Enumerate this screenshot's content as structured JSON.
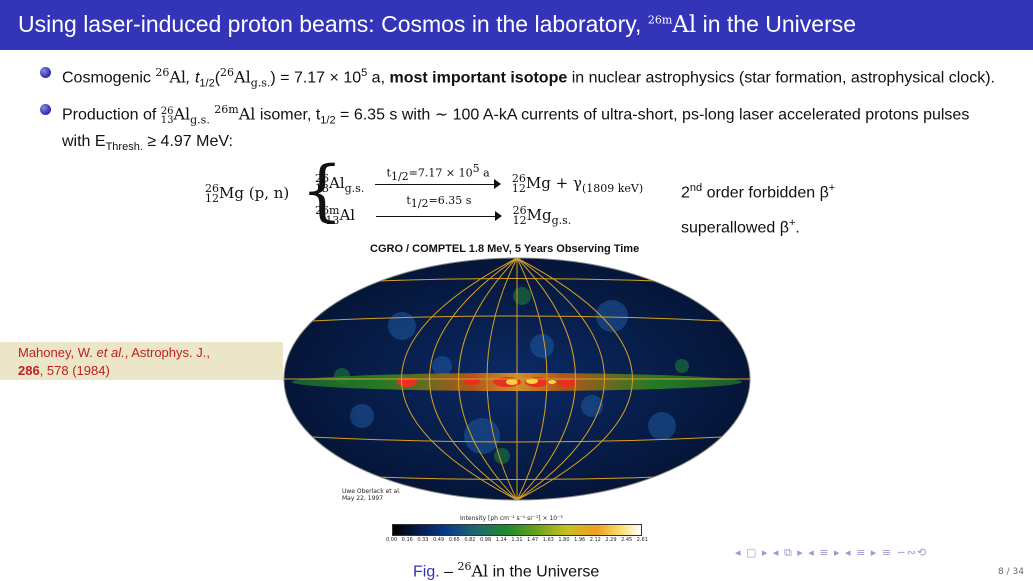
{
  "slide": {
    "title_main": "Using laser-induced proton beams: Cosmos in the laboratory, ",
    "title_iso_mass": "26m",
    "title_iso_el": "Al",
    "title_tail": " in the Universe"
  },
  "bullets": [
    {
      "a": "Cosmogenic ",
      "iso1_mass": "26",
      "iso1_el": "Al",
      "b": ", t",
      "half_sub": "1/2",
      "c": "(",
      "iso2_mass": "26",
      "iso2_el": "Al",
      "iso2_sub": "g.s.",
      "d": ") = 7.17 × 10",
      "exp": "5",
      "e": " a, ",
      "bold": "most important isotope",
      "f": " in nuclear astrophysics (star formation, astrophysical clock)."
    },
    {
      "a": "Production of ",
      "iso1_mass": "26",
      "iso1_z": "13",
      "iso1_el": "Al",
      "iso1_sub": "g.s.",
      "iso2_mass": "26m",
      "iso2_el": "Al",
      "b": " isomer, t",
      "half_sub": "1/2",
      "c": " = 6.35 s with ∼ 100 A-kA currents of ultra-short, ps-long laser accelerated protons pulses with E",
      "e_sub": "Thresh.",
      "d": " ≥ 4.97 MeV:"
    }
  ],
  "reaction": {
    "lhs_mass": "26",
    "lhs_z": "12",
    "lhs_el": "Mg",
    "lhs_rest": " (p, n)",
    "row1": {
      "p_mass": "26",
      "p_z": "13",
      "p_el": "Al",
      "p_sub": "g.s.",
      "arrow_label_t": "t",
      "arrow_label_sub": "1/2",
      "arrow_label_val": "=7.17 × 10",
      "arrow_label_exp": "5",
      "arrow_label_unit": " a",
      "d_mass": "26",
      "d_z": "12",
      "d_el": "Mg",
      "d_rest": " + γ",
      "d_gamma_sub": "(1809 keV)"
    },
    "row2": {
      "p_mass": "26m",
      "p_z": "13",
      "p_el": "Al",
      "arrow_label_t": "t",
      "arrow_label_sub": "1/2",
      "arrow_label_val": "=6.35 s",
      "d_mass": "26",
      "d_z": "12",
      "d_el": "Mg",
      "d_sub": "g.s."
    },
    "note1_sup": "nd",
    "note1_num": "2",
    "note1_text": " order forbidden β",
    "note1_plus": "+",
    "note2_text": "superallowed β",
    "note2_plus": "+",
    "note2_end": "."
  },
  "map": {
    "caption": "CGRO / COMPTEL 1.8 MeV, 5 Years Observing Time",
    "credit_1": "Uwe Oberlack et al.",
    "credit_2": "May 22, 1997",
    "colorbar_label": "Intensity [ph cm⁻² s⁻¹ sr⁻¹]  × 10⁻³",
    "colorbar_ticks": [
      "0.00",
      "0.16",
      "0.33",
      "0.49",
      "0.65",
      "0.82",
      "0.98",
      "1.14",
      "1.31",
      "1.47",
      "1.63",
      "1.80",
      "1.96",
      "2.12",
      "2.29",
      "2.45",
      "2.61"
    ]
  },
  "citation": {
    "line1_a": "Mahoney, W. ",
    "line1_italic": "et al.",
    "line1_b": ", Astrophys. J.,",
    "line2_bold": "286",
    "line2_rest": ", 578 (1984)"
  },
  "figure": {
    "lead": "Fig.",
    "dash": " – ",
    "iso_mass": "26",
    "iso_el": "Al",
    "rest": " in the Universe"
  },
  "footer": {
    "nav": "◂ ▢ ▸ ◂ ⧉ ▸ ◂ ≡ ▸ ◂ ≡ ▸   ≡   ∽∾⟲",
    "page": "8 / 34"
  },
  "colors": {
    "titlebar": "#3434b8",
    "citation_bg": "#ece6c8",
    "citation_text": "#c02020"
  }
}
